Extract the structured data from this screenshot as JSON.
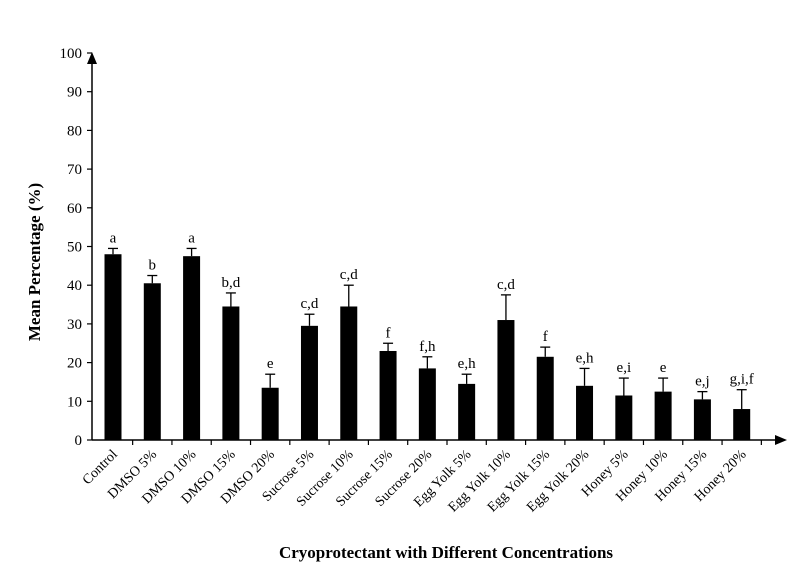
{
  "chart_data": {
    "type": "bar",
    "title": "",
    "xlabel": "Cryoprotectant with Different Concentrations",
    "ylabel": "Mean Percentage (%)",
    "ylim": [
      0,
      100
    ],
    "yticks": [
      0,
      10,
      20,
      30,
      40,
      50,
      60,
      70,
      80,
      90,
      100
    ],
    "grid": false,
    "legend": "none",
    "bar_color": "#000000",
    "categories": [
      "Control",
      "DMSO 5%",
      "DMSO 10%",
      "DMSO 15%",
      "DMSO 20%",
      "Sucrose 5%",
      "Sucrose 10%",
      "Sucrose 15%",
      "Sucrose 20%",
      "Egg Yolk 5%",
      "Egg Yolk 10%",
      "Egg Yolk 15%",
      "Egg Yolk 20%",
      "Honey 5%",
      "Honey 10%",
      "Honey 15%",
      "Honey 20%"
    ],
    "values": [
      48,
      40.5,
      47.5,
      34.5,
      13.5,
      29.5,
      34.5,
      23,
      18.5,
      14.5,
      31,
      21.5,
      14,
      11.5,
      12.5,
      10.5,
      8
    ],
    "errors": [
      1.5,
      2,
      2,
      3.5,
      3.5,
      3,
      5.5,
      2,
      3,
      2.5,
      6.5,
      2.5,
      4.5,
      4.5,
      3.5,
      2,
      5
    ],
    "annotations": [
      "a",
      "b",
      "a",
      "b,d",
      "e",
      "c,d",
      "c,d",
      "f",
      "f,h",
      "e,h",
      "c,d",
      "f",
      "e,h",
      "e,i",
      "e",
      "e,j",
      "g,i,f"
    ]
  }
}
